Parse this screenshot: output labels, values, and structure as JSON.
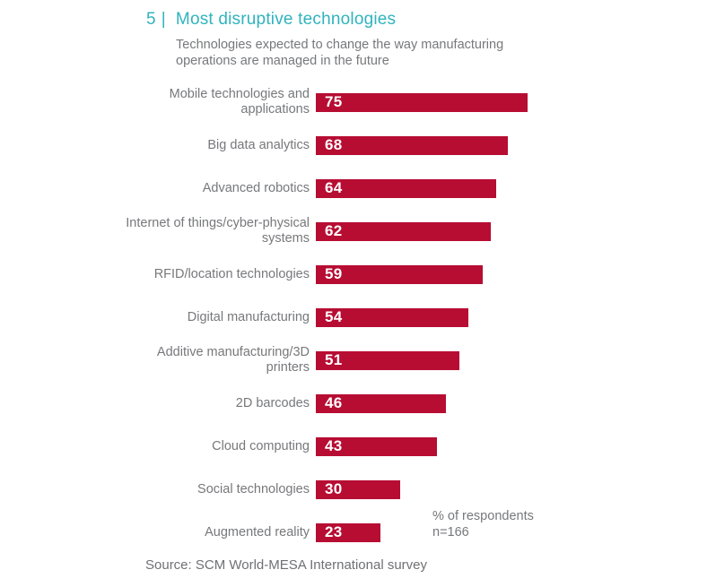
{
  "figure": {
    "number": "5",
    "pipe": "|",
    "title": "Most disruptive technologies",
    "subtitle": "Technologies expected to change the way manufacturing operations are managed in the future",
    "note_line1": "% of respondents",
    "note_line2": "n=166",
    "source": "Source: SCM World-MESA International survey"
  },
  "colors": {
    "bar": "#b70d33",
    "title_teal": "#31b3bd",
    "text_gray": "#77787b"
  },
  "chart_data": {
    "type": "bar",
    "orientation": "horizontal",
    "title": "Most disruptive technologies",
    "subtitle": "Technologies expected to change the way manufacturing operations are managed in the future",
    "unit": "% of respondents",
    "sample_size": "n=166",
    "xlim": [
      0,
      100
    ],
    "grid": false,
    "legend": false,
    "value_label_position": "inside-left",
    "categories": [
      "Mobile technologies and applications",
      "Big data analytics",
      "Advanced robotics",
      "Internet of things/cyber-physical systems",
      "RFID/location technologies",
      "Digital manufacturing",
      "Additive manufacturing/3D printers",
      "2D barcodes",
      "Cloud computing",
      "Social technologies",
      "Augmented reality"
    ],
    "label_lines": [
      [
        "Mobile technologies and",
        "applications"
      ],
      [
        "Big data analytics"
      ],
      [
        "Advanced robotics"
      ],
      [
        "Internet of things/cyber-physical",
        "systems"
      ],
      [
        "RFID/location technologies"
      ],
      [
        "Digital manufacturing"
      ],
      [
        "Additive manufacturing/3D",
        "printers"
      ],
      [
        "2D barcodes"
      ],
      [
        "Cloud computing"
      ],
      [
        "Social technologies"
      ],
      [
        "Augmented reality"
      ]
    ],
    "values": [
      75,
      68,
      64,
      62,
      59,
      54,
      51,
      46,
      43,
      30,
      23
    ]
  }
}
